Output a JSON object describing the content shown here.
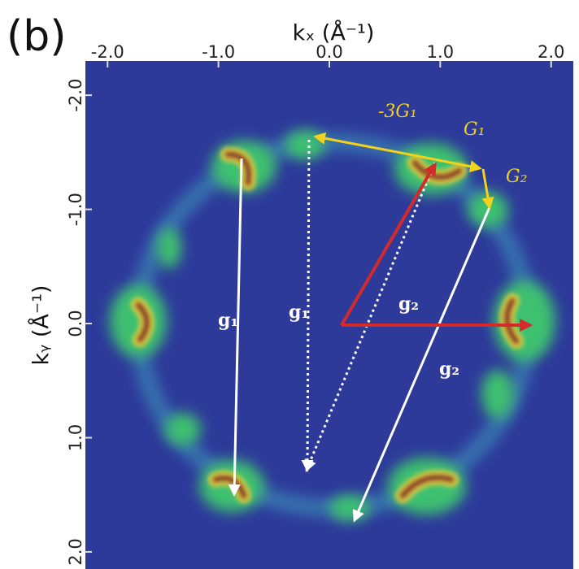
{
  "chart_data": {
    "type": "image",
    "panel_label": "(b)",
    "x_label": "kₓ (Å⁻¹)",
    "y_label": "kᵧ (Å⁻¹)",
    "xlim": [
      -2.2,
      2.2
    ],
    "ylim": [
      -2.3,
      2.15
    ],
    "xticks": [
      {
        "value": -2,
        "label": "-2.0"
      },
      {
        "value": -1,
        "label": "-1.0"
      },
      {
        "value": 0,
        "label": "0.0"
      },
      {
        "value": 1,
        "label": "1.0"
      },
      {
        "value": 2,
        "label": "2.0"
      }
    ],
    "yticks": [
      {
        "value": -2,
        "label": "-2.0"
      },
      {
        "value": -1,
        "label": "-1.0"
      },
      {
        "value": 0,
        "label": "0.0"
      },
      {
        "value": 1,
        "label": "1.0"
      },
      {
        "value": 2,
        "label": "2.0"
      }
    ],
    "annotations": [
      {
        "text": "-3G₁",
        "color": "#f2d21b"
      },
      {
        "text": "G₁",
        "color": "#f2d21b"
      },
      {
        "text": "G₂",
        "color": "#f2d21b"
      },
      {
        "text": "g₁",
        "color": "#ffffff"
      },
      {
        "text": "g₁",
        "color": "#ffffff"
      },
      {
        "text": "g₂",
        "color": "#ffffff"
      },
      {
        "text": "g₂",
        "color": "#ffffff"
      }
    ]
  }
}
